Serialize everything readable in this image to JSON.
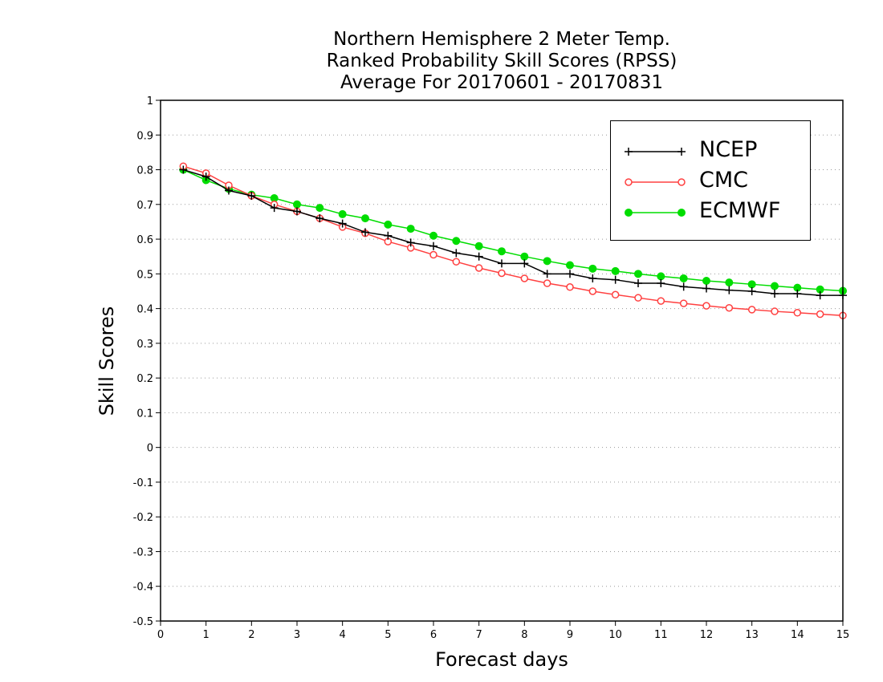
{
  "chart_data": {
    "type": "line",
    "title": [
      "Northern Hemisphere 2 Meter Temp.",
      "Ranked Probability Skill Scores (RPSS)",
      "Average For 20170601 - 20170831"
    ],
    "xlabel": "Forecast days",
    "ylabel": "Skill Scores",
    "xlim": [
      0,
      15
    ],
    "ylim": [
      -0.5,
      1
    ],
    "xticks": [
      "0",
      "1",
      "2",
      "3",
      "4",
      "5",
      "6",
      "7",
      "8",
      "9",
      "10",
      "11",
      "12",
      "13",
      "14",
      "15"
    ],
    "yticks": [
      "-0.5",
      "-0.4",
      "-0.3",
      "-0.2",
      "-0.1",
      "0",
      "0.1",
      "0.2",
      "0.3",
      "0.4",
      "0.5",
      "0.6",
      "0.7",
      "0.8",
      "0.9",
      "1"
    ],
    "grid": true,
    "legend_position": "top-right",
    "x": [
      0.5,
      1,
      1.5,
      2,
      2.5,
      3,
      3.5,
      4,
      4.5,
      5,
      5.5,
      6,
      6.5,
      7,
      7.5,
      8,
      8.5,
      9,
      9.5,
      10,
      10.5,
      11,
      11.5,
      12,
      12.5,
      13,
      13.5,
      14,
      14.5,
      15
    ],
    "series": [
      {
        "name": "NCEP",
        "color": "#000000",
        "marker": "plus",
        "values": [
          0.8,
          0.78,
          0.74,
          0.725,
          0.69,
          0.68,
          0.66,
          0.645,
          0.62,
          0.61,
          0.59,
          0.58,
          0.56,
          0.55,
          0.53,
          0.53,
          0.5,
          0.5,
          0.487,
          0.483,
          0.473,
          0.473,
          0.463,
          0.458,
          0.453,
          0.45,
          0.443,
          0.443,
          0.438,
          0.438
        ]
      },
      {
        "name": "CMC",
        "color": "#ff4040",
        "marker": "open-circle",
        "values": [
          0.81,
          0.79,
          0.755,
          0.725,
          0.7,
          0.68,
          0.66,
          0.635,
          0.617,
          0.593,
          0.575,
          0.555,
          0.535,
          0.517,
          0.502,
          0.487,
          0.473,
          0.462,
          0.45,
          0.44,
          0.431,
          0.422,
          0.415,
          0.408,
          0.402,
          0.397,
          0.392,
          0.388,
          0.384,
          0.38
        ]
      },
      {
        "name": "ECMWF",
        "color": "#00dd00",
        "marker": "filled-circle",
        "values": [
          0.8,
          0.77,
          0.745,
          0.728,
          0.718,
          0.7,
          0.69,
          0.672,
          0.66,
          0.642,
          0.63,
          0.61,
          0.595,
          0.58,
          0.565,
          0.55,
          0.537,
          0.525,
          0.515,
          0.508,
          0.5,
          0.493,
          0.487,
          0.48,
          0.475,
          0.47,
          0.465,
          0.46,
          0.455,
          0.451
        ]
      }
    ]
  }
}
